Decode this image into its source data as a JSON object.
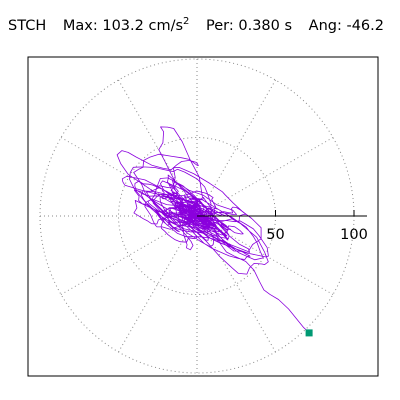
{
  "header": {
    "station": "STCH",
    "max_label": "Max:",
    "max_value": "103.2",
    "max_unit": "cm/s",
    "max_unit_exp": "2",
    "per_label": "Per:",
    "per_value": "0.380 s",
    "ang_label": "Ang:",
    "ang_value": "-46.2"
  },
  "colors": {
    "trace": "#8a00dd",
    "marker": "#009973",
    "grid": "#888888",
    "axis": "#000000"
  },
  "chart_data": {
    "type": "polar-scatter",
    "title": "STCH",
    "radial_ticks": [
      "50",
      "100"
    ],
    "radial_tick_values": [
      50,
      100
    ],
    "radial_max": 100,
    "angle_step_deg": 30,
    "grid": true,
    "peak": {
      "magnitude": 103.2,
      "angle_deg": -46.2,
      "period_s": 0.38
    },
    "orbit": {
      "major_axis_angle_deg": -36,
      "major_sigma": 22,
      "minor_sigma": 9,
      "points": 1400
    }
  }
}
